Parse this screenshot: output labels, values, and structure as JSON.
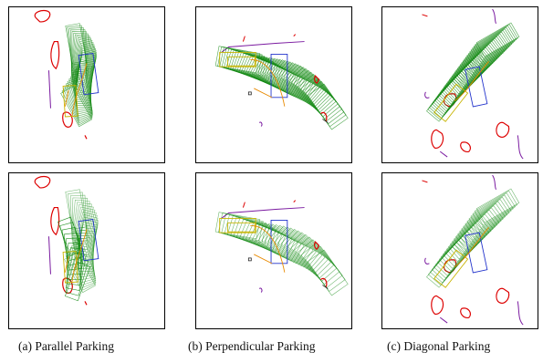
{
  "figure": {
    "captions": {
      "parallel": "(a) Parallel Parking",
      "perpendicular": "(b) Perpendicular Parking",
      "diagonal": "(c) Diagonal Parking"
    },
    "colors": {
      "trajectory": "#118811",
      "obstacle": "#dd0000",
      "curb": "#7a1aa0",
      "target_slot": "#2233cc",
      "start_pose": "#c8b400",
      "path": "#e88a00"
    }
  }
}
